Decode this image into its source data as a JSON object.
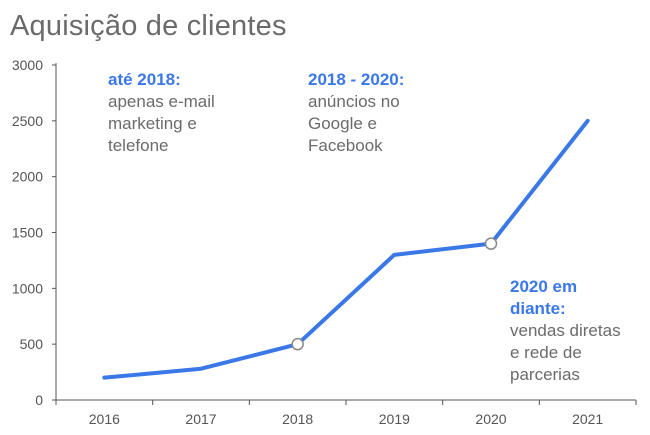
{
  "title": "Aquisição de clientes",
  "accent_color": "#3b78e7",
  "chart_data": {
    "type": "line",
    "title": "Aquisição de clientes",
    "xlabel": "",
    "ylabel": "",
    "categories": [
      "2016",
      "2017",
      "2018",
      "2019",
      "2020",
      "2021"
    ],
    "series": [
      {
        "values": [
          200,
          280,
          500,
          1300,
          1400,
          2500
        ],
        "color": "#3b78e7"
      }
    ],
    "marked_points": [
      "2018",
      "2020"
    ],
    "ylim": [
      0,
      3000
    ],
    "yticks": [
      "3000",
      "2500",
      "2000",
      "1500",
      "1000",
      "500",
      "0"
    ],
    "grid": false
  },
  "annotations": [
    {
      "head": "até 2018:",
      "body": "apenas e-mail\nmarketing e\ntelefone"
    },
    {
      "head": "2018 - 2020:",
      "body": "anúncios no\nGoogle e\nFacebook"
    },
    {
      "head": "2020 em\ndiante:",
      "body": "vendas diretas\ne rede de\nparcerias"
    }
  ]
}
